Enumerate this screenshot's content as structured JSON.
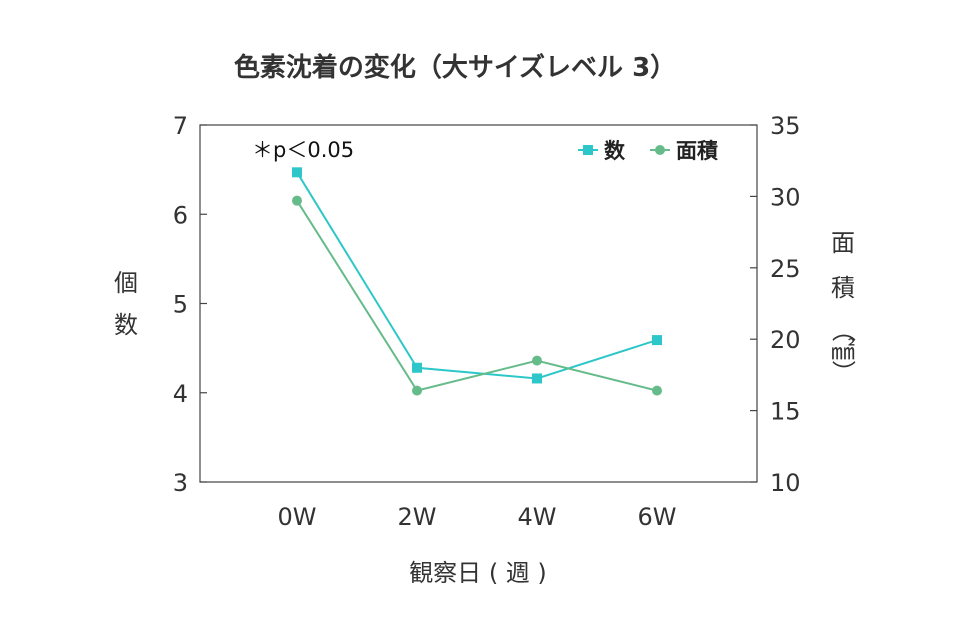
{
  "chart_data": {
    "type": "line",
    "title": "色素沈着の変化（大サイズレベル 3）",
    "categories": [
      "0W",
      "2W",
      "4W",
      "6W"
    ],
    "xlabel": "観察日 ( 週 )",
    "ylabel_left": [
      "個",
      "数"
    ],
    "ylabel_right": [
      "面",
      "積",
      "（",
      "㎟",
      "）"
    ],
    "ylim_left": [
      3,
      7
    ],
    "ylim_right": [
      10,
      35
    ],
    "yticks_left": [
      3,
      4,
      5,
      6,
      7
    ],
    "yticks_right": [
      10,
      15,
      20,
      25,
      30,
      35
    ],
    "annotation": "＊p＜0.05",
    "legend_position": "top-right",
    "grid": false,
    "series": [
      {
        "name": "数",
        "axis": "left",
        "marker": "square",
        "color": "#2ec7c9",
        "values": [
          6.47,
          4.28,
          4.16,
          4.59
        ]
      },
      {
        "name": "面積",
        "axis": "right",
        "marker": "circle",
        "color": "#66bb8a",
        "values": [
          29.7,
          16.4,
          18.5,
          16.4
        ]
      }
    ]
  }
}
